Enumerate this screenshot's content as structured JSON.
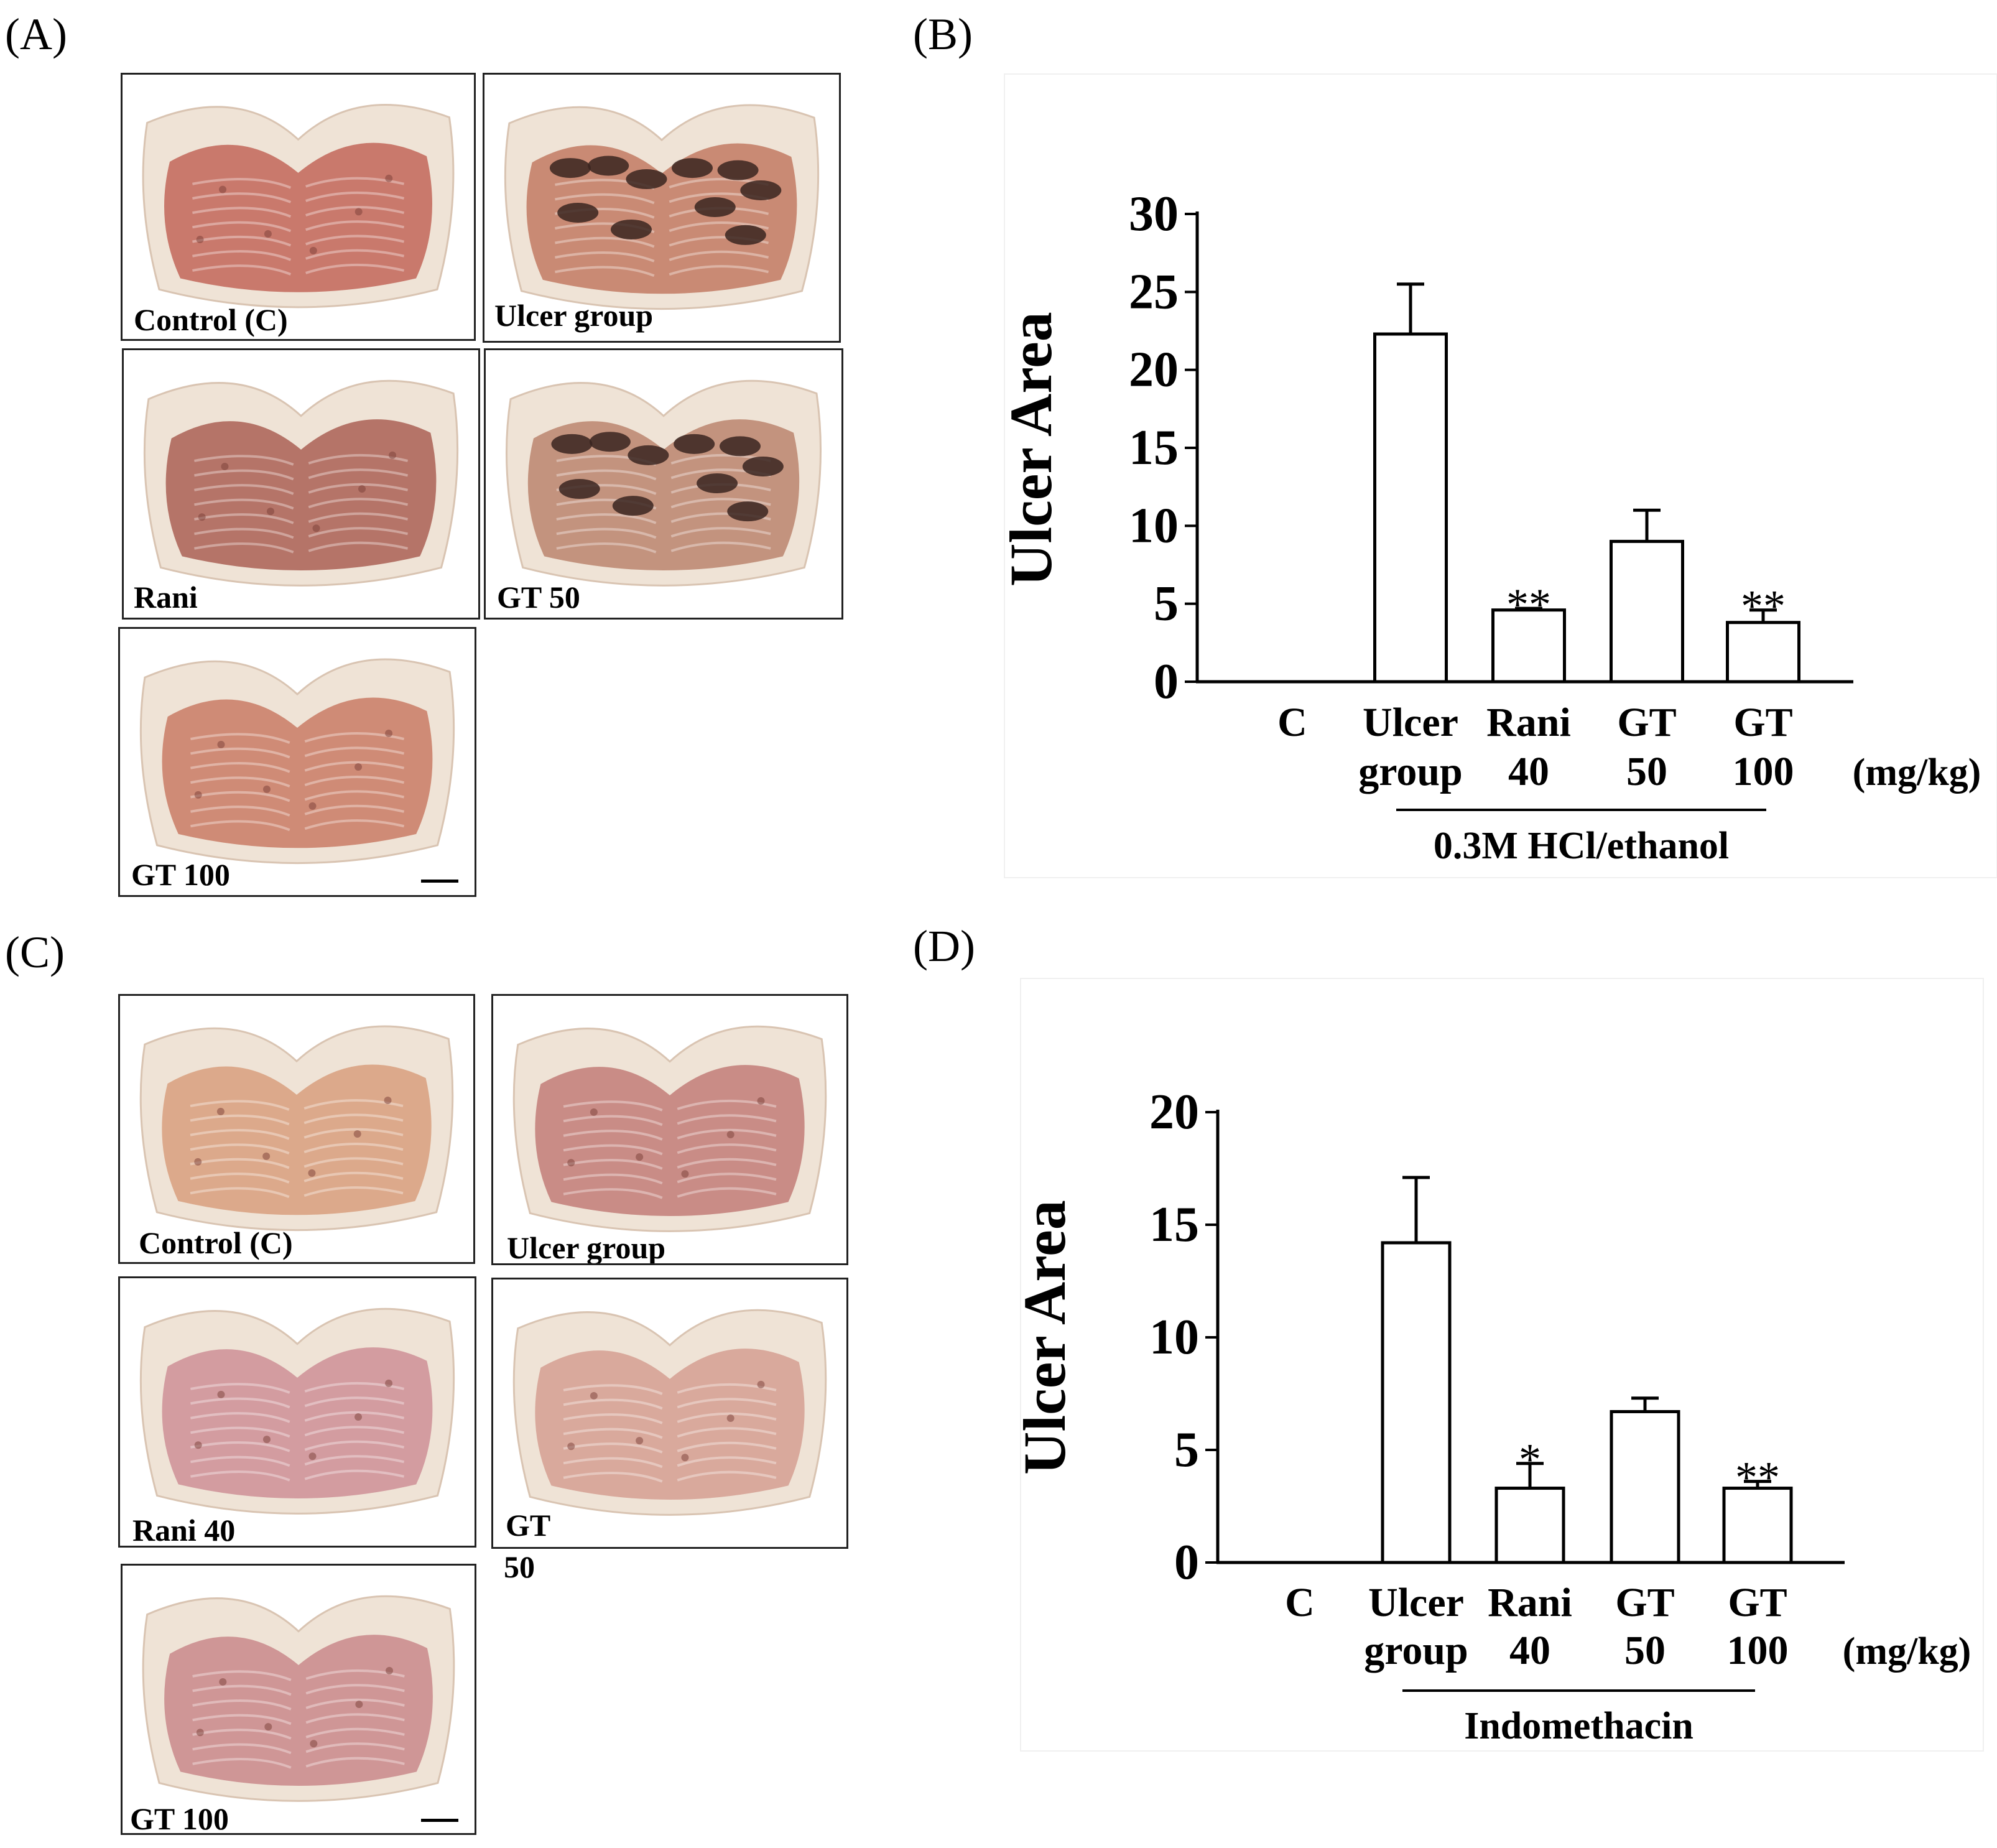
{
  "panels": {
    "A": {
      "letter": "(A)",
      "photos": [
        {
          "label": "Control (C)",
          "tissue": "#c9796c",
          "dark": false
        },
        {
          "label": "Ulcer group",
          "tissue": "#c98a74",
          "dark": true
        },
        {
          "label": "Rani",
          "tissue": "#b57468",
          "dark": false
        },
        {
          "label": "GT 50",
          "tissue": "#c3937e",
          "dark": true
        },
        {
          "label": "GT 100",
          "tissue": "#cf8b76",
          "dark": false
        }
      ]
    },
    "C": {
      "letter": "(C)",
      "photos": [
        {
          "label": "Control (C)",
          "tissue": "#dca98b",
          "dark": false
        },
        {
          "label": "Ulcer group",
          "tissue": "#c98c86",
          "dark": false
        },
        {
          "label": "Rani 40",
          "tissue": "#d39ca0",
          "dark": false
        },
        {
          "label": "GT 50",
          "label_line1": "GT",
          "label_line2": "50",
          "tissue": "#d9a99c",
          "dark": false
        },
        {
          "label": "GT 100",
          "tissue": "#cf9696",
          "dark": false
        }
      ]
    },
    "B": {
      "letter": "(B)"
    },
    "D": {
      "letter": "(D)"
    }
  },
  "chart_data": [
    {
      "type": "bar",
      "panel": "B",
      "ylabel": "Ulcer Area",
      "ylim": [
        0,
        30
      ],
      "yticks": [
        "0",
        "5",
        "10",
        "15",
        "20",
        "25",
        "30"
      ],
      "categories": [
        {
          "line1": "C",
          "line2": ""
        },
        {
          "line1": "Ulcer",
          "line2": "group"
        },
        {
          "line1": "Rani",
          "line2": "40"
        },
        {
          "line1": "GT",
          "line2": "50"
        },
        {
          "line1": "GT",
          "line2": "100"
        }
      ],
      "values": [
        0,
        22.3,
        4.6,
        9.0,
        3.8
      ],
      "errors": [
        0,
        3.2,
        0.1,
        2.0,
        0.8
      ],
      "significance": [
        "",
        "",
        "**",
        "",
        "**"
      ],
      "unit": "(mg/kg)",
      "group_label": "0.3M HCl/ethanol"
    },
    {
      "type": "bar",
      "panel": "D",
      "ylabel": "Ulcer Area",
      "ylim": [
        0,
        20
      ],
      "yticks": [
        "0",
        "5",
        "10",
        "15",
        "20"
      ],
      "categories": [
        {
          "line1": "C",
          "line2": ""
        },
        {
          "line1": "Ulcer",
          "line2": "group"
        },
        {
          "line1": "Rani",
          "line2": "40"
        },
        {
          "line1": "GT",
          "line2": "50"
        },
        {
          "line1": "GT",
          "line2": "100"
        }
      ],
      "values": [
        0,
        14.2,
        3.3,
        6.7,
        3.3
      ],
      "errors": [
        0,
        2.9,
        1.1,
        0.6,
        0.3
      ],
      "significance": [
        "",
        "",
        "*",
        "",
        "**"
      ],
      "unit": "(mg/kg)",
      "group_label": "Indomethacin"
    }
  ]
}
